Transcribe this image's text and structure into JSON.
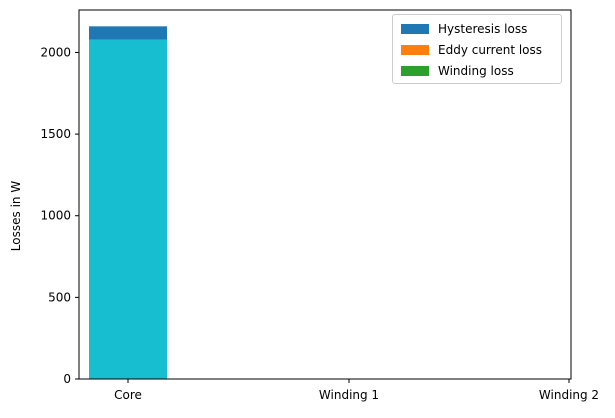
{
  "chart_data": {
    "type": "bar",
    "categories": [
      "Core",
      "Winding 1",
      "Winding 2"
    ],
    "series": [
      {
        "name": "Hysteresis loss",
        "values": [
          2160,
          0,
          0
        ],
        "color": "#1f77b4"
      },
      {
        "name": "Eddy current loss",
        "values": [
          0,
          0,
          0
        ],
        "color": "#ff7f0e"
      },
      {
        "name": "Winding loss",
        "values": [
          0,
          0,
          0
        ],
        "color": "#2ca02c"
      }
    ],
    "overlay_bar": {
      "values": [
        2080,
        0,
        0
      ],
      "color": "#17becf"
    },
    "ylabel": "Losses in W",
    "xlabel": "",
    "ylim": [
      0,
      2260
    ],
    "yticks": [
      0,
      500,
      1000,
      1500,
      2000
    ],
    "legend_position": "top-right",
    "grid": false
  }
}
